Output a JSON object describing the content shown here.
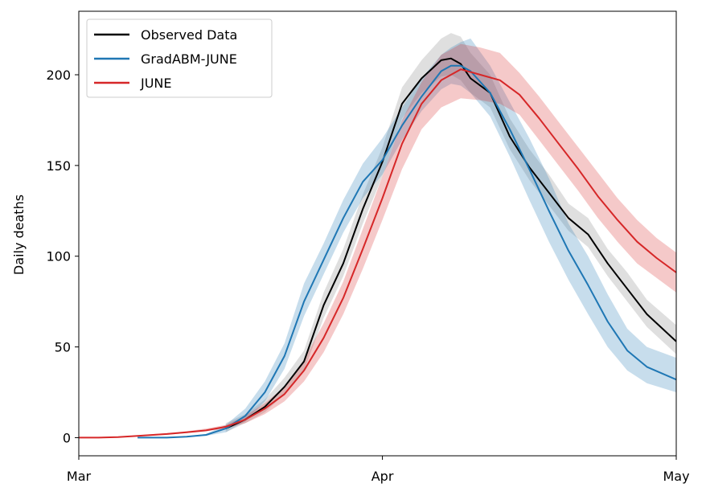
{
  "chart_data": {
    "type": "line",
    "ylabel": "Daily deaths",
    "xlim": [
      "2020-03-01",
      "2020-05-01"
    ],
    "ylim": [
      -10,
      235
    ],
    "x_ticks": [
      {
        "date": "2020-03-01",
        "label": "Mar"
      },
      {
        "date": "2020-04-01",
        "label": "Apr"
      },
      {
        "date": "2020-05-01",
        "label": "May"
      }
    ],
    "y_ticks": [
      0,
      50,
      100,
      150,
      200
    ],
    "grid": false,
    "legend": {
      "placement": "top-left",
      "entries": [
        "Observed Data",
        "GradABM-JUNE",
        "JUNE"
      ]
    },
    "series": [
      {
        "name": "Observed Data",
        "color": "#000000",
        "band_color": "#7f7f7f",
        "x": [
          "2020-03-16",
          "2020-03-18",
          "2020-03-20",
          "2020-03-22",
          "2020-03-24",
          "2020-03-26",
          "2020-03-28",
          "2020-03-30",
          "2020-04-01",
          "2020-04-03",
          "2020-04-05",
          "2020-04-07",
          "2020-04-08",
          "2020-04-09",
          "2020-04-10",
          "2020-04-12",
          "2020-04-14",
          "2020-04-16",
          "2020-04-18",
          "2020-04-20",
          "2020-04-22",
          "2020-04-24",
          "2020-04-26",
          "2020-04-28",
          "2020-05-01"
        ],
        "y": [
          5,
          10,
          17,
          28,
          42,
          73,
          96,
          126,
          152,
          184,
          198,
          208,
          209,
          206,
          198,
          190,
          166,
          149,
          135,
          121,
          112,
          96,
          82,
          68,
          53
        ],
        "lower": [
          3,
          8,
          14,
          24,
          37,
          66,
          89,
          118,
          144,
          176,
          190,
          199,
          200,
          197,
          190,
          182,
          159,
          142,
          128,
          114,
          105,
          89,
          75,
          61,
          46
        ],
        "upper": [
          8,
          13,
          21,
          33,
          48,
          80,
          104,
          134,
          160,
          193,
          208,
          220,
          223,
          221,
          212,
          200,
          176,
          159,
          145,
          129,
          121,
          104,
          91,
          76,
          62
        ]
      },
      {
        "name": "GradABM-JUNE",
        "color": "#1f77b4",
        "band_color": "#1f77b4",
        "x": [
          "2020-03-07",
          "2020-03-10",
          "2020-03-12",
          "2020-03-14",
          "2020-03-16",
          "2020-03-18",
          "2020-03-20",
          "2020-03-22",
          "2020-03-24",
          "2020-03-26",
          "2020-03-28",
          "2020-03-30",
          "2020-04-01",
          "2020-04-03",
          "2020-04-05",
          "2020-04-07",
          "2020-04-08",
          "2020-04-09",
          "2020-04-10",
          "2020-04-12",
          "2020-04-14",
          "2020-04-16",
          "2020-04-18",
          "2020-04-20",
          "2020-04-22",
          "2020-04-24",
          "2020-04-26",
          "2020-04-28",
          "2020-05-01"
        ],
        "y": [
          0,
          0,
          0.5,
          1.5,
          5,
          12,
          25,
          45,
          75,
          98,
          121,
          141,
          153,
          172,
          188,
          202,
          205,
          205,
          202,
          190,
          170,
          148,
          125,
          103,
          84,
          64,
          48,
          39,
          32
        ],
        "lower": [
          0,
          0,
          0.3,
          1,
          3,
          9,
          20,
          38,
          67,
          90,
          113,
          132,
          145,
          164,
          180,
          192,
          195,
          194,
          190,
          177,
          155,
          131,
          108,
          87,
          68,
          50,
          37,
          30,
          25
        ],
        "upper": [
          0,
          0,
          0.8,
          2,
          7,
          16,
          31,
          52,
          85,
          107,
          131,
          151,
          165,
          182,
          198,
          211,
          215,
          218,
          220,
          205,
          185,
          165,
          143,
          118,
          100,
          79,
          60,
          50,
          44
        ]
      },
      {
        "name": "JUNE",
        "color": "#d62728",
        "band_color": "#d62728",
        "x": [
          "2020-03-01",
          "2020-03-03",
          "2020-03-05",
          "2020-03-07",
          "2020-03-10",
          "2020-03-12",
          "2020-03-14",
          "2020-03-16",
          "2020-03-18",
          "2020-03-20",
          "2020-03-22",
          "2020-03-24",
          "2020-03-26",
          "2020-03-28",
          "2020-03-30",
          "2020-04-01",
          "2020-04-03",
          "2020-04-05",
          "2020-04-07",
          "2020-04-09",
          "2020-04-11",
          "2020-04-13",
          "2020-04-15",
          "2020-04-17",
          "2020-04-19",
          "2020-04-21",
          "2020-04-23",
          "2020-04-25",
          "2020-04-27",
          "2020-04-29",
          "2020-05-01"
        ],
        "y": [
          0,
          0,
          0.3,
          1,
          2,
          3,
          4,
          6,
          10,
          16,
          24,
          37,
          55,
          77,
          104,
          132,
          162,
          184,
          197,
          203,
          200,
          197,
          189,
          176,
          162,
          148,
          133,
          120,
          108,
          99,
          91
        ],
        "lower": [
          0,
          0,
          0.2,
          0.8,
          1.5,
          2.5,
          3.5,
          5,
          8,
          13,
          20,
          31,
          47,
          68,
          93,
          120,
          148,
          170,
          182,
          187,
          186,
          184,
          178,
          164,
          150,
          136,
          121,
          108,
          96,
          88,
          80
        ],
        "upper": [
          0,
          0,
          0.5,
          1.3,
          2.5,
          3.5,
          5,
          7,
          12,
          19,
          28,
          43,
          63,
          86,
          115,
          144,
          175,
          196,
          211,
          217,
          215,
          212,
          201,
          188,
          174,
          160,
          146,
          132,
          120,
          110,
          102
        ]
      }
    ]
  }
}
